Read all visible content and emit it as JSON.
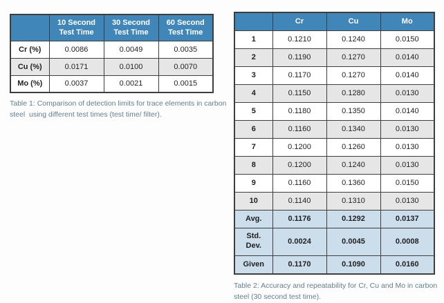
{
  "colors": {
    "header_blue": "#4186b8",
    "alt_row_gray": "#e6e6e6",
    "summary_row_blue": "#ccddec",
    "table_border": "#3d3d3d",
    "caption_gray": "#637e8c",
    "text_dark": "#1f1f1f",
    "page_background": "#fdfdfd"
  },
  "table1": {
    "columns": [
      "",
      "10 Second Test Time",
      "30 Second Test Time",
      "60 Second Test Time"
    ],
    "rows": [
      {
        "label": "Cr (%)",
        "values": [
          "0.0086",
          "0.0049",
          "0.0035"
        ],
        "shade": "white"
      },
      {
        "label": "Cu (%)",
        "values": [
          "0.0171",
          "0.0100",
          "0.0070"
        ],
        "shade": "gray"
      },
      {
        "label": "Mo (%)",
        "values": [
          "0.0037",
          "0.0021",
          "0.0015"
        ],
        "shade": "white"
      }
    ],
    "caption": "Table 1: Comparison of detection limits for trace elements in carbon steel  using different test times (test time/ filter)."
  },
  "table2": {
    "columns": [
      "",
      "Cr",
      "Cu",
      "Mo"
    ],
    "rows": [
      {
        "label": "1",
        "values": [
          "0.1210",
          "0.1240",
          "0.0150"
        ],
        "shade": "white"
      },
      {
        "label": "2",
        "values": [
          "0.1190",
          "0.1270",
          "0.0140"
        ],
        "shade": "gray"
      },
      {
        "label": "3",
        "values": [
          "0.1170",
          "0.1270",
          "0.0140"
        ],
        "shade": "white"
      },
      {
        "label": "4",
        "values": [
          "0.1150",
          "0.1280",
          "0.0130"
        ],
        "shade": "gray"
      },
      {
        "label": "5",
        "values": [
          "0.1180",
          "0.1350",
          "0.0140"
        ],
        "shade": "white"
      },
      {
        "label": "6",
        "values": [
          "0.1160",
          "0.1340",
          "0.0130"
        ],
        "shade": "gray"
      },
      {
        "label": "7",
        "values": [
          "0.1200",
          "0.1260",
          "0.0130"
        ],
        "shade": "white"
      },
      {
        "label": "8",
        "values": [
          "0.1200",
          "0.1240",
          "0.0130"
        ],
        "shade": "gray"
      },
      {
        "label": "9",
        "values": [
          "0.1160",
          "0.1360",
          "0.0150"
        ],
        "shade": "white"
      },
      {
        "label": "10",
        "values": [
          "0.1140",
          "0.1310",
          "0.0130"
        ],
        "shade": "gray"
      },
      {
        "label": "Avg.",
        "values": [
          "0.1176",
          "0.1292",
          "0.0137"
        ],
        "shade": "blue",
        "bold": true
      },
      {
        "label": "Std. Dev.",
        "values": [
          "0.0024",
          "0.0045",
          "0.0008"
        ],
        "shade": "blue",
        "bold": true,
        "tall": true
      },
      {
        "label": "Given",
        "values": [
          "0.1170",
          "0.1090",
          "0.0160"
        ],
        "shade": "blue",
        "bold": true,
        "last": true
      }
    ],
    "caption": "Table 2: Accuracy and repeatability for Cr, Cu and Mo in carbon steel (30 second test time)."
  }
}
